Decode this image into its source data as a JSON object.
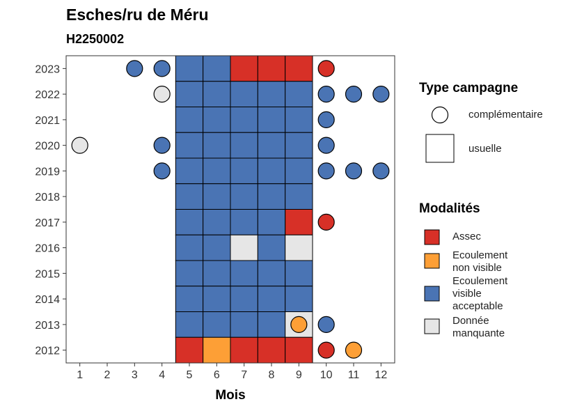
{
  "chart_data": {
    "type": "scatter",
    "title": "Esches/ru de Méru",
    "subtitle": "H2250002",
    "xlabel": "Mois",
    "ylabel": "",
    "x_ticks": [
      "1",
      "2",
      "3",
      "4",
      "5",
      "6",
      "7",
      "8",
      "9",
      "10",
      "11",
      "12"
    ],
    "y_ticks": [
      "2012",
      "2013",
      "2014",
      "2015",
      "2016",
      "2017",
      "2018",
      "2019",
      "2020",
      "2021",
      "2022",
      "2023"
    ],
    "xlim": [
      0.5,
      12.5
    ],
    "ylim": [
      2011.5,
      2023.5
    ],
    "colors": {
      "Assec": "#d73027",
      "Ecoulement non visible": "#fd9f36",
      "Ecoulement visible acceptable": "#4a74b4",
      "Donnée manquante": "#e6e6e6"
    },
    "legend_type": {
      "title": "Type campagne",
      "items": [
        {
          "label": "complémentaire",
          "shape": "circle"
        },
        {
          "label": "usuelle",
          "shape": "square"
        }
      ]
    },
    "legend_modalites": {
      "title": "Modalités",
      "items": [
        {
          "key": "Assec",
          "lines": [
            "Assec"
          ]
        },
        {
          "key": "Ecoulement non visible",
          "lines": [
            "Ecoulement",
            "non visible"
          ]
        },
        {
          "key": "Ecoulement visible acceptable",
          "lines": [
            "Ecoulement",
            "visible",
            "acceptable"
          ]
        },
        {
          "key": "Donnée manquante",
          "lines": [
            "Donnée",
            "manquante"
          ]
        }
      ]
    },
    "usuelle": [
      {
        "year": 2023,
        "months": {
          "5": "V",
          "6": "V",
          "7": "A",
          "8": "A",
          "9": "A"
        }
      },
      {
        "year": 2022,
        "months": {
          "5": "V",
          "6": "V",
          "7": "V",
          "8": "V",
          "9": "V"
        }
      },
      {
        "year": 2021,
        "months": {
          "5": "V",
          "6": "V",
          "7": "V",
          "8": "V",
          "9": "V"
        }
      },
      {
        "year": 2020,
        "months": {
          "5": "V",
          "6": "V",
          "7": "V",
          "8": "V",
          "9": "V"
        }
      },
      {
        "year": 2019,
        "months": {
          "5": "V",
          "6": "V",
          "7": "V",
          "8": "V",
          "9": "V"
        }
      },
      {
        "year": 2018,
        "months": {
          "5": "V",
          "6": "V",
          "7": "V",
          "8": "V",
          "9": "V"
        }
      },
      {
        "year": 2017,
        "months": {
          "5": "V",
          "6": "V",
          "7": "V",
          "8": "V",
          "9": "A"
        }
      },
      {
        "year": 2016,
        "months": {
          "5": "V",
          "6": "V",
          "7": "M",
          "8": "V",
          "9": "M"
        }
      },
      {
        "year": 2015,
        "months": {
          "5": "V",
          "6": "V",
          "7": "V",
          "8": "V",
          "9": "V"
        }
      },
      {
        "year": 2014,
        "months": {
          "5": "V",
          "6": "V",
          "7": "V",
          "8": "V",
          "9": "V"
        }
      },
      {
        "year": 2013,
        "months": {
          "5": "V",
          "6": "V",
          "7": "V",
          "8": "V",
          "9": "M"
        }
      },
      {
        "year": 2012,
        "months": {
          "5": "A",
          "6": "N",
          "7": "A",
          "8": "A",
          "9": "A"
        }
      }
    ],
    "complementaire": [
      {
        "year": 2023,
        "month": 3,
        "mod": "V"
      },
      {
        "year": 2023,
        "month": 4,
        "mod": "V"
      },
      {
        "year": 2023,
        "month": 10,
        "mod": "A"
      },
      {
        "year": 2022,
        "month": 4,
        "mod": "M"
      },
      {
        "year": 2022,
        "month": 10,
        "mod": "V"
      },
      {
        "year": 2022,
        "month": 11,
        "mod": "V"
      },
      {
        "year": 2022,
        "month": 12,
        "mod": "V"
      },
      {
        "year": 2021,
        "month": 10,
        "mod": "V"
      },
      {
        "year": 2020,
        "month": 1,
        "mod": "M"
      },
      {
        "year": 2020,
        "month": 4,
        "mod": "V"
      },
      {
        "year": 2020,
        "month": 10,
        "mod": "V"
      },
      {
        "year": 2019,
        "month": 4,
        "mod": "V"
      },
      {
        "year": 2019,
        "month": 10,
        "mod": "V"
      },
      {
        "year": 2019,
        "month": 11,
        "mod": "V"
      },
      {
        "year": 2019,
        "month": 12,
        "mod": "V"
      },
      {
        "year": 2017,
        "month": 10,
        "mod": "A"
      },
      {
        "year": 2013,
        "month": 9,
        "mod": "N"
      },
      {
        "year": 2013,
        "month": 10,
        "mod": "V"
      },
      {
        "year": 2012,
        "month": 10,
        "mod": "A"
      },
      {
        "year": 2012,
        "month": 11,
        "mod": "N"
      }
    ],
    "codes": {
      "A": "Assec",
      "N": "Ecoulement non visible",
      "V": "Ecoulement visible acceptable",
      "M": "Donnée manquante"
    }
  }
}
